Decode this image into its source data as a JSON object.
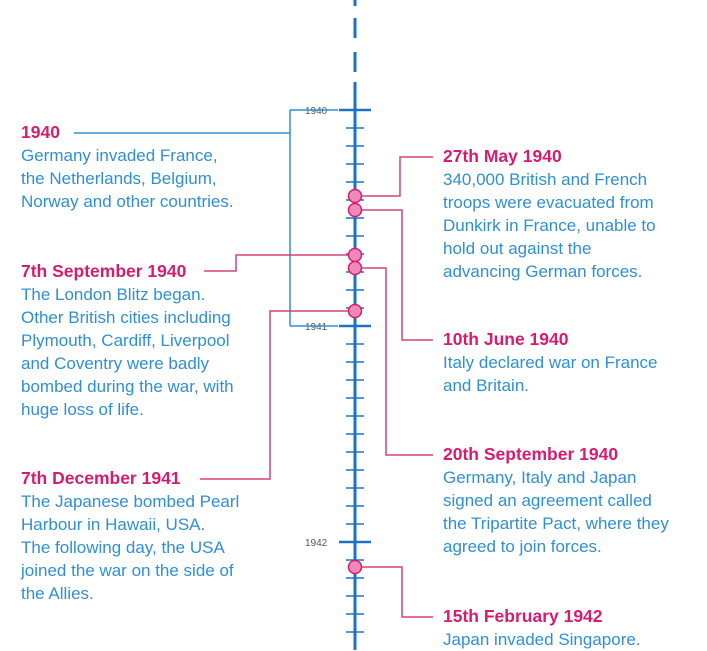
{
  "axis": {
    "year_labels": [
      "1940",
      "1941",
      "1942"
    ]
  },
  "colors": {
    "axis": "#1a73c4",
    "connector_year": "#2f8fd3",
    "connector_event": "#d8407f",
    "marker_fill": "#f08ab8",
    "marker_stroke": "#d81b6e",
    "title": "#d81b6e",
    "body": "#2f8fd3"
  },
  "events": {
    "e1940": {
      "title": "1940",
      "lines": [
        "Germany invaded France,",
        "the Netherlands, Belgium,",
        "Norway and other countries."
      ]
    },
    "sep1940": {
      "title": "7th September 1940",
      "lines": [
        "The London Blitz began.",
        "Other British cities including",
        "Plymouth, Cardiff, Liverpool",
        "and Coventry were badly",
        "bombed during the war, with",
        "huge loss of life."
      ]
    },
    "dec1941": {
      "title": "7th December 1941",
      "lines": [
        "The Japanese bombed Pearl",
        "Harbour in Hawaii, USA.",
        "The following day, the USA",
        "joined the war on the side of",
        "the Allies."
      ]
    },
    "may1940": {
      "title": "27th May 1940",
      "lines": [
        "340,000 British and French",
        "troops were evacuated from",
        "Dunkirk in France, unable to",
        "hold out against the",
        "advancing German forces."
      ]
    },
    "jun1940": {
      "title": "10th June 1940",
      "lines": [
        "Italy declared war on France",
        "and Britain."
      ]
    },
    "sep1940b": {
      "title": "20th September 1940",
      "lines": [
        "Germany, Italy and Japan",
        "signed an agreement called",
        "the Tripartite Pact, where they",
        "agreed to join forces."
      ]
    },
    "feb1942": {
      "title": "15th February 1942",
      "lines": [
        "Japan invaded Singapore."
      ]
    }
  }
}
